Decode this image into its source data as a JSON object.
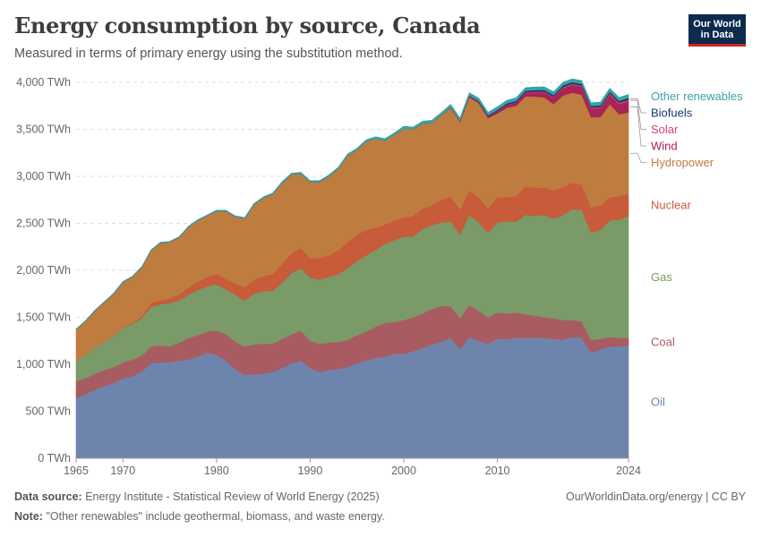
{
  "title": "Energy consumption by source, Canada",
  "subtitle": "Measured in terms of primary energy using the substitution method.",
  "logo": {
    "line1": "Our World",
    "line2": "in Data"
  },
  "footer": {
    "source_label": "Data source:",
    "source_text": "Energy Institute - Statistical Review of World Energy (2025)",
    "license": "OurWorldinData.org/energy | CC BY",
    "note_label": "Note:",
    "note_text": "\"Other renewables\" include geothermal, biomass, and waste energy."
  },
  "chart_data": {
    "type": "area",
    "stacked": true,
    "ylim": [
      0,
      4000
    ],
    "y_ticks": [
      0,
      500,
      1000,
      1500,
      2000,
      2500,
      3000,
      3500,
      4000
    ],
    "y_tick_labels": [
      "0 TWh",
      "500 TWh",
      "1,000 TWh",
      "1,500 TWh",
      "2,000 TWh",
      "2,500 TWh",
      "3,000 TWh",
      "3,500 TWh",
      "4,000 TWh"
    ],
    "x_ticks": [
      1965,
      1970,
      1980,
      1990,
      2000,
      2010,
      2024
    ],
    "x_tick_labels": [
      "1965",
      "1970",
      "1980",
      "1990",
      "2000",
      "2010",
      "2024"
    ],
    "grid": true,
    "x": [
      1965,
      1966,
      1967,
      1968,
      1969,
      1970,
      1971,
      1972,
      1973,
      1974,
      1975,
      1976,
      1977,
      1978,
      1979,
      1980,
      1981,
      1982,
      1983,
      1984,
      1985,
      1986,
      1987,
      1988,
      1989,
      1990,
      1991,
      1992,
      1993,
      1994,
      1995,
      1996,
      1997,
      1998,
      1999,
      2000,
      2001,
      2002,
      2003,
      2004,
      2005,
      2006,
      2007,
      2008,
      2009,
      2010,
      2011,
      2012,
      2013,
      2014,
      2015,
      2016,
      2017,
      2018,
      2019,
      2020,
      2021,
      2022,
      2023,
      2024
    ],
    "series": [
      {
        "name": "Oil",
        "color": "#6d85ad",
        "values": [
          640,
          680,
          730,
          770,
          800,
          850,
          870,
          920,
          1010,
          1020,
          1020,
          1040,
          1050,
          1080,
          1120,
          1100,
          1040,
          950,
          890,
          890,
          900,
          920,
          960,
          1010,
          1040,
          960,
          920,
          940,
          950,
          970,
          1010,
          1040,
          1070,
          1080,
          1110,
          1110,
          1140,
          1170,
          1210,
          1240,
          1280,
          1160,
          1290,
          1250,
          1220,
          1270,
          1270,
          1280,
          1280,
          1280,
          1280,
          1270,
          1260,
          1290,
          1280,
          1120,
          1160,
          1190,
          1190,
          1200
        ]
      },
      {
        "name": "Coal",
        "color": "#a85c62",
        "values": [
          180,
          170,
          170,
          170,
          170,
          170,
          180,
          170,
          180,
          180,
          170,
          190,
          230,
          230,
          230,
          260,
          280,
          290,
          300,
          320,
          320,
          300,
          310,
          310,
          320,
          290,
          300,
          290,
          290,
          290,
          300,
          310,
          330,
          360,
          340,
          360,
          360,
          370,
          380,
          380,
          340,
          330,
          340,
          320,
          280,
          280,
          270,
          270,
          250,
          240,
          220,
          220,
          210,
          180,
          180,
          140,
          110,
          100,
          90,
          80
        ]
      },
      {
        "name": "Gas",
        "color": "#7a9a68",
        "values": [
          220,
          250,
          280,
          300,
          330,
          370,
          380,
          400,
          420,
          440,
          460,
          450,
          460,
          480,
          480,
          490,
          480,
          500,
          490,
          540,
          560,
          560,
          600,
          650,
          660,
          670,
          680,
          700,
          720,
          760,
          790,
          810,
          820,
          840,
          870,
          890,
          860,
          900,
          890,
          890,
          900,
          890,
          960,
          940,
          900,
          960,
          980,
          970,
          1060,
          1060,
          1090,
          1060,
          1120,
          1180,
          1180,
          1140,
          1160,
          1240,
          1260,
          1300
        ]
      },
      {
        "name": "Nuclear",
        "color": "#c75b3a",
        "values": [
          0,
          0,
          0,
          0,
          0,
          5,
          10,
          20,
          40,
          40,
          50,
          60,
          80,
          90,
          100,
          110,
          110,
          120,
          140,
          150,
          160,
          180,
          200,
          210,
          220,
          210,
          230,
          230,
          250,
          280,
          280,
          270,
          230,
          210,
          210,
          200,
          220,
          220,
          210,
          240,
          260,
          270,
          260,
          270,
          260,
          270,
          260,
          270,
          300,
          300,
          290,
          300,
          300,
          280,
          270,
          270,
          260,
          250,
          250,
          230
        ]
      },
      {
        "name": "Hydropower",
        "color": "#bf7c3f",
        "values": [
          330,
          360,
          390,
          420,
          450,
          480,
          490,
          520,
          560,
          610,
          600,
          610,
          640,
          650,
          650,
          670,
          720,
          710,
          730,
          800,
          830,
          850,
          860,
          840,
          790,
          810,
          810,
          840,
          870,
          920,
          900,
          940,
          950,
          890,
          910,
          950,
          920,
          900,
          880,
          900,
          950,
          930,
          990,
          1000,
          960,
          890,
          950,
          960,
          960,
          970,
          960,
          920,
          970,
          960,
          960,
          960,
          940,
          990,
          870,
          870
        ]
      },
      {
        "name": "Wind",
        "color": "#a82356",
        "values": [
          0,
          0,
          0,
          0,
          0,
          0,
          0,
          0,
          0,
          0,
          0,
          0,
          0,
          0,
          0,
          0,
          0,
          0,
          0,
          0,
          0,
          0,
          0,
          0,
          0,
          0,
          0,
          0,
          0,
          0,
          0,
          0,
          0,
          0,
          0,
          0,
          0,
          0,
          0,
          0,
          5,
          8,
          12,
          15,
          20,
          25,
          30,
          35,
          40,
          45,
          55,
          70,
          80,
          85,
          85,
          90,
          95,
          100,
          110,
          120
        ]
      },
      {
        "name": "Solar",
        "color": "#d7466c",
        "values": [
          0,
          0,
          0,
          0,
          0,
          0,
          0,
          0,
          0,
          0,
          0,
          0,
          0,
          0,
          0,
          0,
          0,
          0,
          0,
          0,
          0,
          0,
          0,
          0,
          0,
          0,
          0,
          0,
          0,
          0,
          0,
          0,
          0,
          0,
          0,
          0,
          0,
          0,
          0,
          0,
          0,
          0,
          0,
          0,
          0,
          1,
          2,
          3,
          5,
          7,
          8,
          9,
          10,
          10,
          11,
          11,
          12,
          13,
          14,
          15
        ]
      },
      {
        "name": "Biofuels",
        "color": "#14386b",
        "values": [
          0,
          0,
          0,
          0,
          0,
          0,
          0,
          0,
          0,
          0,
          0,
          0,
          0,
          0,
          0,
          0,
          0,
          0,
          0,
          0,
          0,
          0,
          0,
          0,
          0,
          0,
          0,
          0,
          0,
          0,
          0,
          0,
          0,
          0,
          0,
          0,
          0,
          0,
          0,
          0,
          2,
          4,
          6,
          8,
          10,
          12,
          14,
          15,
          16,
          16,
          17,
          17,
          18,
          18,
          18,
          17,
          18,
          18,
          19,
          19
        ]
      },
      {
        "name": "Other renewables",
        "color": "#38a3a5",
        "values": [
          5,
          5,
          5,
          6,
          6,
          6,
          7,
          7,
          7,
          8,
          8,
          8,
          9,
          9,
          9,
          10,
          10,
          10,
          11,
          11,
          12,
          12,
          13,
          13,
          14,
          14,
          15,
          16,
          17,
          18,
          19,
          20,
          21,
          22,
          23,
          24,
          25,
          26,
          27,
          28,
          29,
          30,
          31,
          31,
          32,
          32,
          32,
          33,
          33,
          33,
          33,
          34,
          34,
          34,
          35,
          35,
          35,
          36,
          36,
          37
        ]
      }
    ],
    "legend_placement": "right"
  }
}
